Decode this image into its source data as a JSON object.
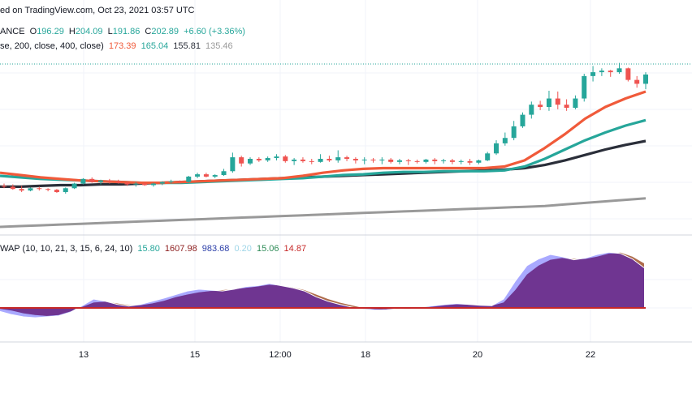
{
  "header": {
    "published": "ed on TradingView.com, Oct 23, 2021 03:57 UTC",
    "symbol_suffix": "ANCE",
    "o_label": "O",
    "o_val": "196.29",
    "h_label": "H",
    "h_val": "204.09",
    "l_label": "L",
    "l_val": "191.86",
    "c_label": "C",
    "c_val": "202.89",
    "change": "+6.60 (+3.36%)"
  },
  "ma_legend": {
    "params": "se, 200, close, 400, close)",
    "values": [
      {
        "text": "173.39",
        "color": "#f05a3a"
      },
      {
        "text": "165.04",
        "color": "#26a69a"
      },
      {
        "text": "155.81",
        "color": "#2a2e39"
      },
      {
        "text": "135.46",
        "color": "#999999"
      }
    ]
  },
  "osc_legend": {
    "params": "WAP (10, 10, 21, 3, 15, 6, 24, 10)",
    "values": [
      {
        "text": "15.80",
        "color": "#26a69a"
      },
      {
        "text": "1607.98",
        "color": "#8e2020"
      },
      {
        "text": "983.68",
        "color": "#2b3ea8"
      },
      {
        "text": "0.20",
        "color": "#9fd6e8"
      },
      {
        "text": "15.06",
        "color": "#2e8b57"
      },
      {
        "text": "14.87",
        "color": "#c62828"
      }
    ]
  },
  "chart_data": {
    "type": "candlestick",
    "x_ticks": [
      "13",
      "15",
      "12:00",
      "18",
      "20",
      "22"
    ],
    "colors": {
      "up": "#26a69a",
      "down": "#ef5350",
      "ma1": "#f05a3a",
      "ma2": "#26a69a",
      "ma3": "#2a2e39",
      "ma4": "#999999"
    },
    "candles": [
      [
        153,
        156,
        150,
        152
      ],
      [
        152,
        155,
        148,
        149
      ],
      [
        149,
        153,
        145,
        147
      ],
      [
        147,
        151,
        146,
        150
      ],
      [
        150,
        152,
        147,
        149
      ],
      [
        149,
        150,
        146,
        148
      ],
      [
        148,
        149,
        144,
        145
      ],
      [
        145,
        151,
        143,
        150
      ],
      [
        150,
        157,
        149,
        156
      ],
      [
        156,
        163,
        155,
        162
      ],
      [
        162,
        164,
        157,
        158
      ],
      [
        158,
        161,
        155,
        160
      ],
      [
        160,
        162,
        156,
        159
      ],
      [
        159,
        161,
        156,
        157
      ],
      [
        157,
        159,
        153,
        155
      ],
      [
        155,
        158,
        152,
        156
      ],
      [
        156,
        158,
        153,
        154
      ],
      [
        154,
        157,
        152,
        156
      ],
      [
        156,
        159,
        154,
        158
      ],
      [
        158,
        161,
        156,
        159
      ],
      [
        159,
        160,
        156,
        158
      ],
      [
        158,
        166,
        157,
        165
      ],
      [
        165,
        170,
        163,
        168
      ],
      [
        168,
        170,
        164,
        165
      ],
      [
        165,
        168,
        163,
        167
      ],
      [
        167,
        175,
        166,
        172
      ],
      [
        172,
        196,
        170,
        190
      ],
      [
        190,
        192,
        178,
        182
      ],
      [
        182,
        190,
        180,
        188
      ],
      [
        188,
        190,
        184,
        186
      ],
      [
        186,
        191,
        184,
        189
      ],
      [
        189,
        194,
        186,
        191
      ],
      [
        191,
        193,
        183,
        185
      ],
      [
        185,
        189,
        180,
        187
      ],
      [
        187,
        190,
        183,
        185
      ],
      [
        185,
        188,
        181,
        184
      ],
      [
        184,
        194,
        183,
        188
      ],
      [
        188,
        192,
        184,
        186
      ],
      [
        186,
        199,
        183,
        190
      ],
      [
        190,
        192,
        185,
        188
      ],
      [
        188,
        190,
        182,
        186
      ],
      [
        186,
        190,
        181,
        187
      ],
      [
        187,
        189,
        183,
        186
      ],
      [
        186,
        190,
        181,
        187
      ],
      [
        187,
        189,
        182,
        184
      ],
      [
        184,
        188,
        181,
        186
      ],
      [
        186,
        188,
        180,
        185
      ],
      [
        185,
        187,
        182,
        184
      ],
      [
        184,
        188,
        182,
        187
      ],
      [
        187,
        189,
        181,
        185
      ],
      [
        185,
        188,
        182,
        186
      ],
      [
        186,
        188,
        181,
        184
      ],
      [
        184,
        187,
        181,
        185
      ],
      [
        185,
        188,
        180,
        183
      ],
      [
        183,
        187,
        181,
        186
      ],
      [
        186,
        197,
        185,
        195
      ],
      [
        195,
        212,
        193,
        208
      ],
      [
        208,
        222,
        205,
        215
      ],
      [
        215,
        237,
        212,
        230
      ],
      [
        230,
        248,
        228,
        245
      ],
      [
        245,
        262,
        240,
        258
      ],
      [
        258,
        263,
        251,
        255
      ],
      [
        255,
        276,
        250,
        266
      ],
      [
        266,
        275,
        252,
        258
      ],
      [
        258,
        265,
        250,
        254
      ],
      [
        254,
        270,
        252,
        266
      ],
      [
        266,
        298,
        262,
        295
      ],
      [
        295,
        308,
        288,
        300
      ],
      [
        300,
        305,
        295,
        302
      ],
      [
        302,
        303,
        294,
        300
      ],
      [
        300,
        312,
        298,
        305
      ],
      [
        305,
        306,
        288,
        290
      ],
      [
        290,
        295,
        280,
        285
      ],
      [
        285,
        300,
        278,
        297
      ]
    ],
    "ma": {
      "ma1": [
        170,
        167,
        164,
        162,
        160,
        159,
        158,
        157,
        157,
        158,
        159,
        160,
        161,
        162,
        163,
        166,
        170,
        173,
        175,
        176,
        176,
        176,
        176,
        176,
        176,
        178,
        186,
        202,
        220,
        240,
        255,
        266,
        275
      ],
      "ma2": [
        166,
        164,
        162,
        161,
        160,
        159,
        158,
        157,
        157,
        157,
        158,
        159,
        160,
        161,
        162,
        163,
        165,
        167,
        168,
        170,
        171,
        171,
        172,
        172,
        172,
        173,
        178,
        188,
        200,
        212,
        222,
        231,
        238
      ],
      "ma3": [
        152,
        152,
        153,
        154,
        154,
        155,
        155,
        156,
        157,
        158,
        159,
        160,
        161,
        162,
        163,
        164,
        165,
        166,
        167,
        168,
        169,
        170,
        171,
        172,
        173,
        174,
        176,
        180,
        186,
        193,
        200,
        206,
        211
      ],
      "ma4": [
        100,
        101,
        102,
        103,
        104,
        105,
        106,
        107,
        108,
        109,
        110,
        111,
        112,
        113,
        114,
        115,
        116,
        117,
        118,
        119,
        120,
        121,
        122,
        123,
        124,
        125,
        126,
        127,
        129,
        131,
        133,
        135,
        137
      ]
    },
    "osc": {
      "main": [
        -8,
        -15,
        -20,
        -22,
        -20,
        -18,
        -10,
        5,
        20,
        15,
        8,
        4,
        8,
        15,
        22,
        30,
        38,
        42,
        40,
        38,
        42,
        48,
        50,
        55,
        50,
        45,
        38,
        25,
        15,
        8,
        2,
        -3,
        -5,
        -4,
        -2,
        -1,
        2,
        5,
        8,
        10,
        8,
        6,
        5,
        20,
        60,
        95,
        110,
        120,
        115,
        108,
        112,
        120,
        125,
        122,
        110,
        90
      ],
      "signal": [
        -2,
        -6,
        -12,
        -16,
        -18,
        -16,
        -8,
        2,
        12,
        14,
        10,
        6,
        6,
        10,
        16,
        24,
        30,
        35,
        38,
        40,
        42,
        45,
        48,
        52,
        50,
        46,
        40,
        30,
        20,
        12,
        6,
        0,
        -3,
        -4,
        -3,
        -2,
        0,
        3,
        6,
        8,
        7,
        6,
        5,
        12,
        40,
        75,
        95,
        108,
        112,
        110,
        110,
        115,
        122,
        124,
        115,
        100
      ]
    }
  }
}
